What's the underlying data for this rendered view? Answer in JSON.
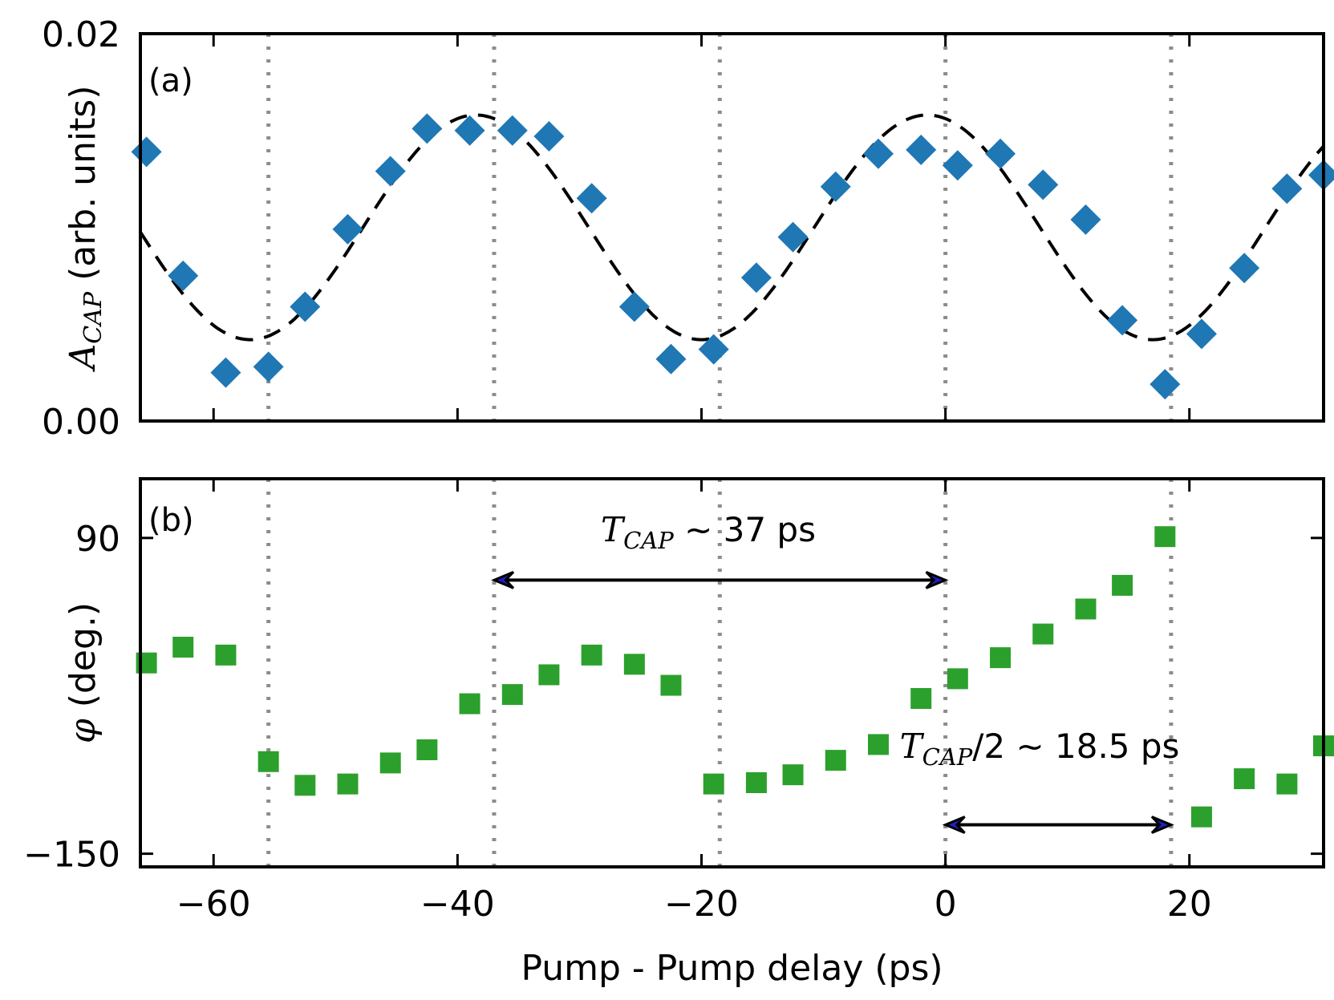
{
  "chart_data": [
    {
      "id": "panel-a",
      "type": "scatter",
      "panel_label": "(a)",
      "xlabel": "Pump - Pump delay (ps)",
      "ylabel": {
        "symbol": "A",
        "subscript": "CAP",
        "units": " (arb. units)"
      },
      "xlim": [
        -66,
        31
      ],
      "ylim": [
        0.0,
        0.02
      ],
      "yticks": [
        0.0,
        0.02
      ],
      "ytick_labels": [
        "0.00",
        "0.02"
      ],
      "xticks": [
        -60,
        -40,
        -20,
        0,
        20
      ],
      "vlines": [
        -55.5,
        -37,
        -18.5,
        0,
        18.5
      ],
      "marker": "diamond",
      "marker_color": "#1f77b4",
      "fit_color": "#000000",
      "series": [
        {
          "name": "data",
          "x": [
            -65.5,
            -62.5,
            -59,
            -55.5,
            -52.5,
            -49,
            -45.5,
            -42.5,
            -39,
            -35.5,
            -32.5,
            -29,
            -25.5,
            -22.5,
            -19,
            -15.5,
            -12.5,
            -9,
            -5.5,
            -2,
            1,
            4.5,
            8,
            11.5,
            14.5,
            18,
            21,
            24.5,
            28,
            31
          ],
          "y": [
            0.0139,
            0.0075,
            0.0025,
            0.0028,
            0.0059,
            0.0099,
            0.0129,
            0.0151,
            0.015,
            0.015,
            0.0147,
            0.0115,
            0.0059,
            0.0032,
            0.0037,
            0.0074,
            0.0095,
            0.0121,
            0.0138,
            0.014,
            0.0132,
            0.0138,
            0.0122,
            0.0104,
            0.0052,
            0.0019,
            0.0045,
            0.0079,
            0.012,
            0.0127
          ]
        },
        {
          "name": "fit",
          "style": "dashed",
          "model": "cosine",
          "center": 0.01,
          "amplitude": 0.0058,
          "period": 37,
          "peak_at": -1.5
        }
      ]
    },
    {
      "id": "panel-b",
      "type": "scatter",
      "panel_label": "(b)",
      "xlabel": "Pump - Pump delay (ps)",
      "ylabel": {
        "symbol": "φ",
        "units": " (deg.)"
      },
      "xlim": [
        -66,
        31
      ],
      "ylim": [
        -160,
        135
      ],
      "yticks": [
        -150,
        90
      ],
      "ytick_labels": [
        "−150",
        "90"
      ],
      "xticks": [
        -60,
        -40,
        -20,
        0,
        20
      ],
      "xtick_labels": [
        "−60",
        "−40",
        "−20",
        "0",
        "20"
      ],
      "vlines": [
        -55.5,
        -37,
        -18.5,
        0,
        18.5
      ],
      "marker": "square",
      "marker_color": "#2ca02c",
      "series": [
        {
          "name": "data",
          "x": [
            -65.5,
            -62.5,
            -59,
            -55.5,
            -52.5,
            -49,
            -45.5,
            -42.5,
            -39,
            -35.5,
            -32.5,
            -29,
            -25.5,
            -22.5,
            -19,
            -15.5,
            -12.5,
            -9,
            -5.5,
            -2,
            1,
            4.5,
            8,
            11.5,
            14.5,
            18,
            21,
            24.5,
            28,
            31
          ],
          "y": [
            -5,
            7,
            1,
            -80,
            -98,
            -97,
            -81,
            -71,
            -36,
            -29,
            -14,
            1,
            -6,
            -22,
            -97,
            -96,
            -90,
            -79,
            -67,
            -32,
            -17,
            -1,
            17,
            36,
            54,
            91,
            -122,
            -93,
            -97,
            -68
          ]
        }
      ],
      "annotations": [
        {
          "symbol": "T",
          "subscript": "CAP",
          "tail": " ~ 37 ps",
          "x_from": -37,
          "x_to": 0,
          "arrow_y": 58
        },
        {
          "symbol": "T",
          "subscript": "CAP",
          "tail": "/2 ~ 18.5 ps",
          "x_from": 0,
          "x_to": 18.5,
          "arrow_y": -128
        }
      ]
    }
  ]
}
